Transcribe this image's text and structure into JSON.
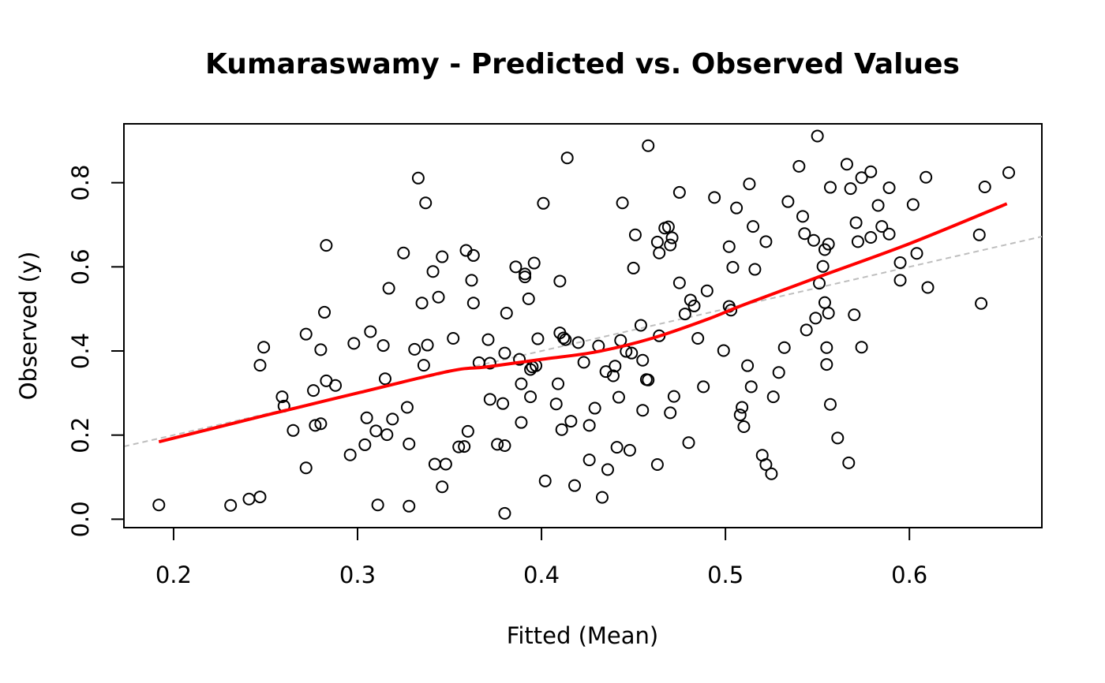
{
  "chart_data": {
    "type": "scatter",
    "title": "Kumaraswamy - Predicted vs. Observed Values",
    "xlabel": "Fitted (Mean)",
    "ylabel": "Observed (y)",
    "xlim": [
      0.173,
      0.672
    ],
    "ylim": [
      -0.02,
      0.94
    ],
    "xticks": [
      "0.2",
      "0.3",
      "0.4",
      "0.5",
      "0.6"
    ],
    "yticks": [
      "0.0",
      "0.2",
      "0.4",
      "0.6",
      "0.8"
    ],
    "grid": false,
    "legend": "none",
    "colors": {
      "points": "#000000",
      "smooth": "#ff0000",
      "reference": "#bebebe"
    },
    "reference_line": {
      "type": "identity",
      "style": "dashed"
    },
    "smooth_curve": {
      "name": "",
      "x": [
        0.192,
        0.25,
        0.3,
        0.35,
        0.37,
        0.4,
        0.43,
        0.46,
        0.49,
        0.51,
        0.55,
        0.6,
        0.653
      ],
      "y": [
        0.184,
        0.247,
        0.3,
        0.352,
        0.362,
        0.38,
        0.398,
        0.43,
        0.475,
        0.51,
        0.575,
        0.655,
        0.75
      ]
    },
    "series": [
      {
        "name": "",
        "x": [
          0.192,
          0.231,
          0.241,
          0.247,
          0.247,
          0.249,
          0.259,
          0.26,
          0.265,
          0.272,
          0.272,
          0.276,
          0.277,
          0.28,
          0.28,
          0.282,
          0.283,
          0.283,
          0.288,
          0.296,
          0.298,
          0.304,
          0.305,
          0.307,
          0.31,
          0.311,
          0.314,
          0.315,
          0.316,
          0.317,
          0.319,
          0.325,
          0.327,
          0.328,
          0.328,
          0.331,
          0.333,
          0.335,
          0.336,
          0.337,
          0.338,
          0.341,
          0.342,
          0.344,
          0.346,
          0.346,
          0.348,
          0.352,
          0.355,
          0.358,
          0.359,
          0.36,
          0.362,
          0.363,
          0.363,
          0.366,
          0.371,
          0.372,
          0.372,
          0.376,
          0.379,
          0.38,
          0.38,
          0.38,
          0.381,
          0.386,
          0.388,
          0.389,
          0.389,
          0.391,
          0.391,
          0.393,
          0.394,
          0.394,
          0.395,
          0.396,
          0.397,
          0.398,
          0.401,
          0.402,
          0.408,
          0.409,
          0.41,
          0.41,
          0.411,
          0.412,
          0.413,
          0.414,
          0.416,
          0.418,
          0.42,
          0.423,
          0.426,
          0.426,
          0.429,
          0.431,
          0.433,
          0.435,
          0.436,
          0.439,
          0.44,
          0.441,
          0.442,
          0.443,
          0.444,
          0.446,
          0.448,
          0.449,
          0.45,
          0.451,
          0.454,
          0.455,
          0.455,
          0.457,
          0.458,
          0.458,
          0.463,
          0.463,
          0.464,
          0.464,
          0.467,
          0.469,
          0.47,
          0.47,
          0.471,
          0.472,
          0.475,
          0.475,
          0.478,
          0.48,
          0.481,
          0.483,
          0.485,
          0.488,
          0.49,
          0.494,
          0.499,
          0.502,
          0.502,
          0.503,
          0.504,
          0.506,
          0.508,
          0.509,
          0.51,
          0.512,
          0.513,
          0.514,
          0.515,
          0.516,
          0.52,
          0.522,
          0.522,
          0.525,
          0.526,
          0.529,
          0.532,
          0.534,
          0.54,
          0.542,
          0.543,
          0.544,
          0.548,
          0.549,
          0.55,
          0.551,
          0.553,
          0.554,
          0.554,
          0.555,
          0.555,
          0.556,
          0.556,
          0.557,
          0.557,
          0.561,
          0.566,
          0.567,
          0.568,
          0.57,
          0.571,
          0.572,
          0.574,
          0.574,
          0.579,
          0.579,
          0.583,
          0.585,
          0.589,
          0.589,
          0.595,
          0.595,
          0.602,
          0.604,
          0.609,
          0.61,
          0.638,
          0.639,
          0.641,
          0.654
        ],
        "y": [
          0.034,
          0.033,
          0.048,
          0.366,
          0.053,
          0.409,
          0.291,
          0.269,
          0.211,
          0.44,
          0.122,
          0.306,
          0.223,
          0.403,
          0.227,
          0.492,
          0.651,
          0.329,
          0.318,
          0.153,
          0.418,
          0.177,
          0.241,
          0.446,
          0.21,
          0.034,
          0.413,
          0.334,
          0.201,
          0.549,
          0.238,
          0.633,
          0.266,
          0.179,
          0.031,
          0.404,
          0.811,
          0.514,
          0.366,
          0.752,
          0.414,
          0.589,
          0.131,
          0.528,
          0.624,
          0.077,
          0.131,
          0.43,
          0.172,
          0.173,
          0.639,
          0.209,
          0.568,
          0.627,
          0.514,
          0.372,
          0.427,
          0.285,
          0.371,
          0.178,
          0.275,
          0.395,
          0.175,
          0.014,
          0.49,
          0.6,
          0.38,
          0.23,
          0.322,
          0.583,
          0.576,
          0.524,
          0.356,
          0.291,
          0.362,
          0.609,
          0.365,
          0.429,
          0.751,
          0.091,
          0.274,
          0.322,
          0.443,
          0.566,
          0.213,
          0.431,
          0.427,
          0.859,
          0.233,
          0.08,
          0.42,
          0.373,
          0.141,
          0.223,
          0.264,
          0.412,
          0.052,
          0.351,
          0.118,
          0.341,
          0.364,
          0.171,
          0.29,
          0.425,
          0.752,
          0.399,
          0.164,
          0.395,
          0.597,
          0.676,
          0.461,
          0.259,
          0.378,
          0.332,
          0.331,
          0.888,
          0.13,
          0.659,
          0.633,
          0.436,
          0.692,
          0.695,
          0.652,
          0.253,
          0.669,
          0.292,
          0.777,
          0.562,
          0.488,
          0.182,
          0.521,
          0.507,
          0.43,
          0.315,
          0.543,
          0.765,
          0.401,
          0.648,
          0.506,
          0.497,
          0.599,
          0.74,
          0.248,
          0.266,
          0.22,
          0.365,
          0.797,
          0.315,
          0.696,
          0.594,
          0.152,
          0.13,
          0.66,
          0.108,
          0.291,
          0.349,
          0.408,
          0.755,
          0.839,
          0.72,
          0.679,
          0.45,
          0.663,
          0.478,
          0.911,
          0.561,
          0.601,
          0.641,
          0.515,
          0.408,
          0.368,
          0.49,
          0.654,
          0.273,
          0.789,
          0.193,
          0.844,
          0.134,
          0.786,
          0.486,
          0.705,
          0.66,
          0.409,
          0.812,
          0.67,
          0.826,
          0.746,
          0.696,
          0.788,
          0.678,
          0.61,
          0.568,
          0.748,
          0.632,
          0.813,
          0.551,
          0.676,
          0.513,
          0.79,
          0.824
        ]
      }
    ]
  }
}
